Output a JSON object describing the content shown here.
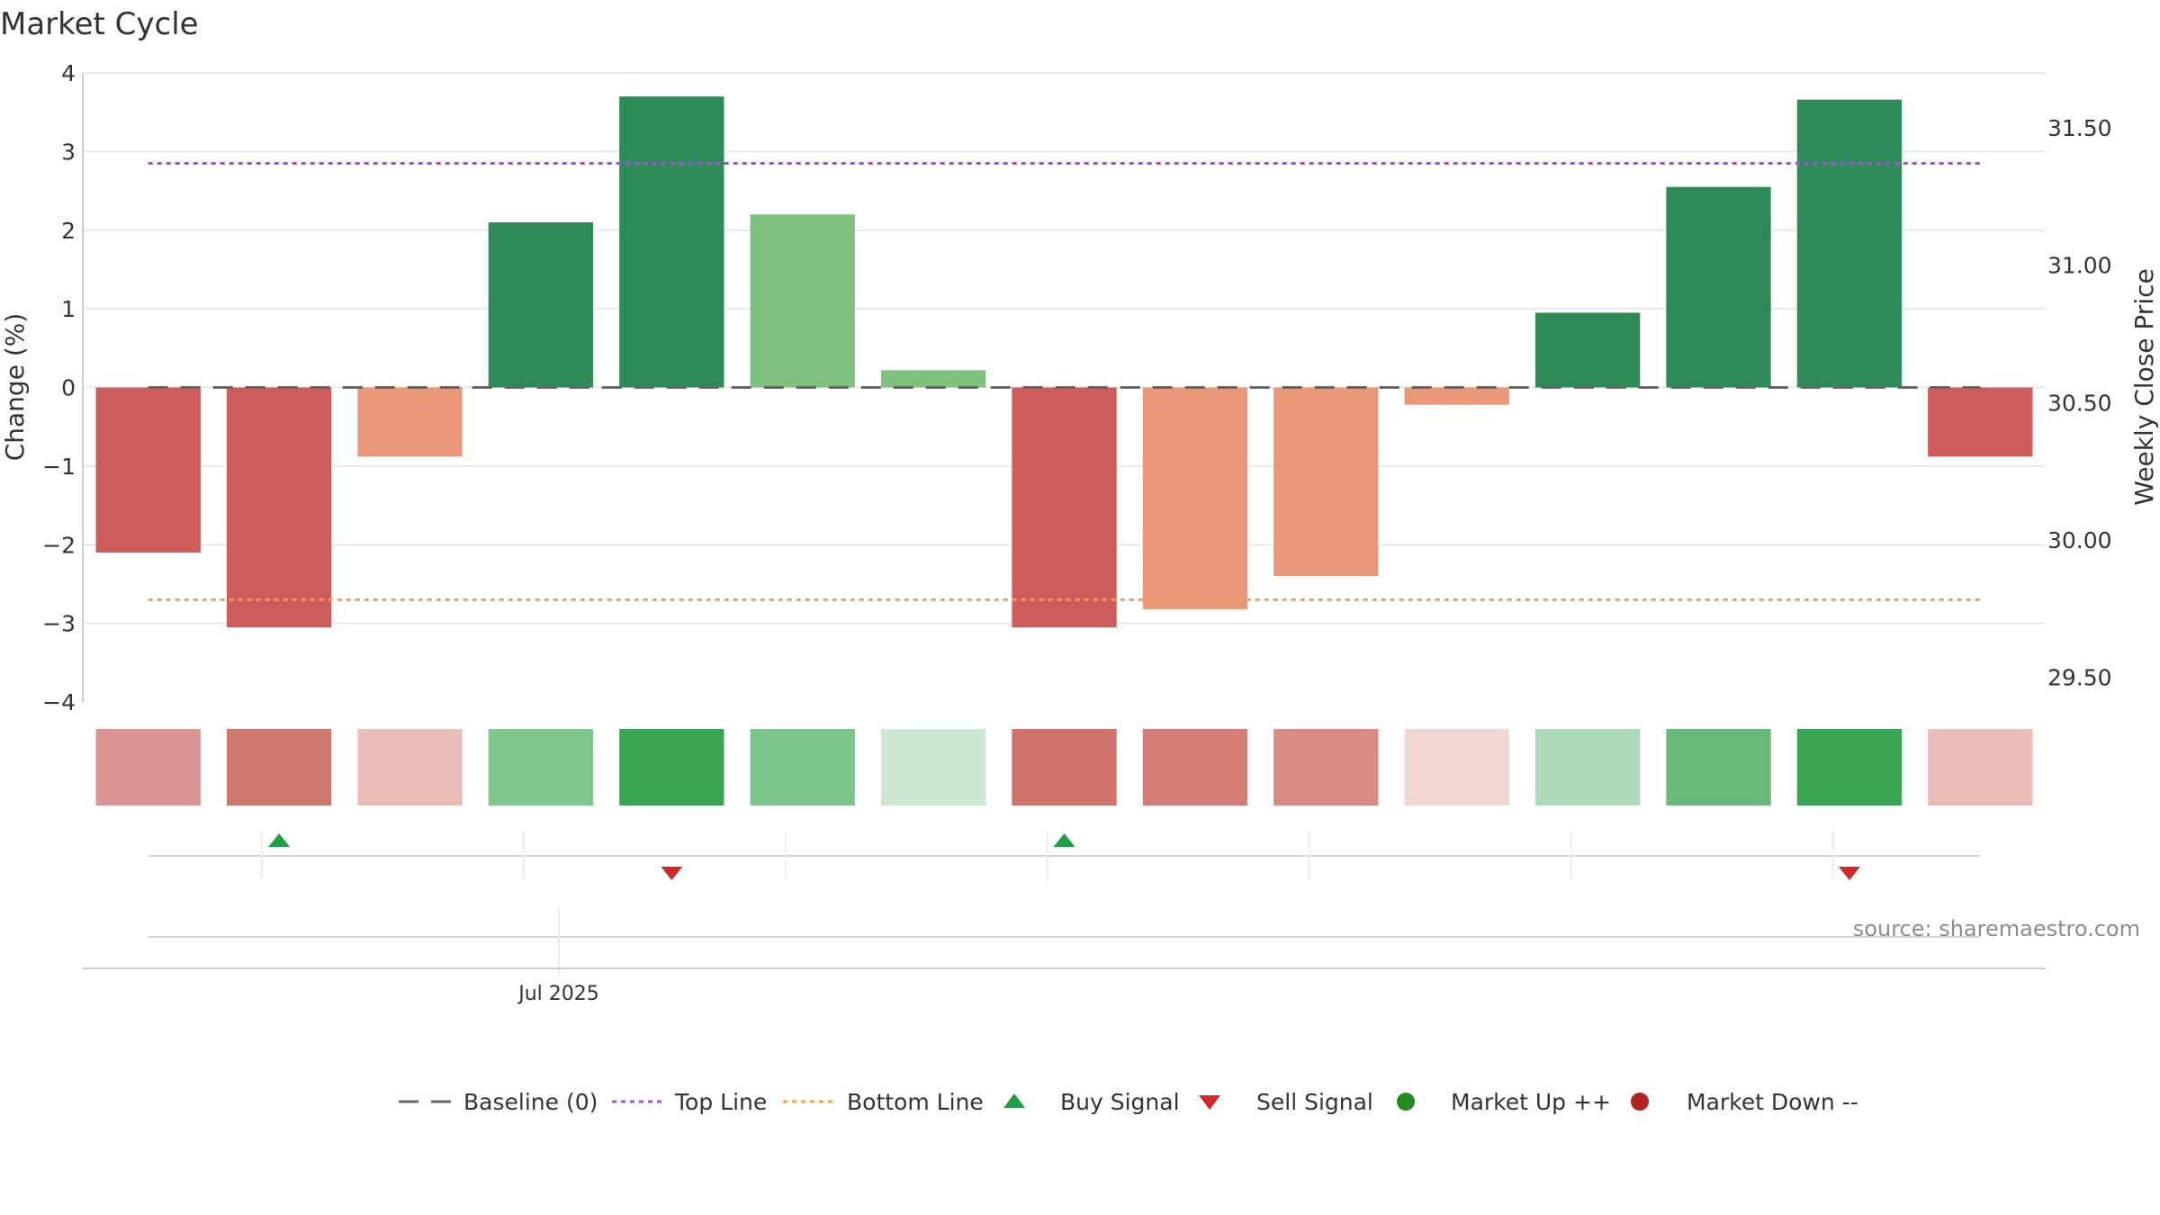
{
  "chart_data": {
    "type": "bar",
    "title": "Market Cycle",
    "ylabel": "Change (%)",
    "y2label": "Weekly Close Price",
    "ylim": [
      -4,
      4
    ],
    "yticks": [
      4,
      3,
      2,
      1,
      0,
      -1,
      -2,
      -3,
      -4
    ],
    "y2lim": [
      29.41,
      31.7
    ],
    "y2ticks": [
      "31.50",
      "31.00",
      "30.50",
      "30.00",
      "29.50"
    ],
    "grid": true,
    "bars": [
      {
        "value": -2.1,
        "color": "#cd5c5a"
      },
      {
        "value": -3.05,
        "color": "#cd5c5a"
      },
      {
        "value": -0.88,
        "color": "#e99778"
      },
      {
        "value": 2.1,
        "color": "#2e8b57"
      },
      {
        "value": 3.7,
        "color": "#2e8b57"
      },
      {
        "value": 2.2,
        "color": "#7fc17f"
      },
      {
        "value": 0.22,
        "color": "#7fc17f"
      },
      {
        "value": -3.05,
        "color": "#cd5c5a"
      },
      {
        "value": -2.82,
        "color": "#e99778"
      },
      {
        "value": -2.4,
        "color": "#e99778"
      },
      {
        "value": -0.22,
        "color": "#e99778"
      },
      {
        "value": 0.95,
        "color": "#2e8b57"
      },
      {
        "value": 2.55,
        "color": "#2e8b57"
      },
      {
        "value": 3.66,
        "color": "#2e8b57"
      },
      {
        "value": -0.88,
        "color": "#cd5c5a"
      }
    ],
    "baseline": {
      "value": 0,
      "color": "#666666"
    },
    "top_line": {
      "value": 2.85,
      "color": "#9b59d0"
    },
    "bottom_line": {
      "value": -2.7,
      "color": "#f0a050"
    },
    "heat_strip": [
      "#da9592",
      "#cf766f",
      "#ebbdb9",
      "#80c68f",
      "#39a654",
      "#7bc58a",
      "#cce8d3",
      "#cf726c",
      "#d47c75",
      "#d98a85",
      "#f2d6d4",
      "#acd9b7",
      "#69b97a",
      "#39a654",
      "#ebbdb9"
    ],
    "signals": [
      {
        "bar": 1,
        "type": "buy"
      },
      {
        "bar": 4,
        "type": "sell"
      },
      {
        "bar": 7,
        "type": "buy"
      },
      {
        "bar": 13,
        "type": "sell"
      }
    ],
    "signal_colors": {
      "buy": "#1f9e4a",
      "sell": "#d62728"
    },
    "x_tick": "Jul 2025",
    "source": "source: sharemaestro.com",
    "legend": [
      {
        "label": "Baseline (0)",
        "marker": "dash-gray"
      },
      {
        "label": "Top Line",
        "marker": "dotted-purple"
      },
      {
        "label": "Bottom Line",
        "marker": "dotted-orange"
      },
      {
        "label": "Buy Signal",
        "marker": "triangle-up-green"
      },
      {
        "label": "Sell Signal",
        "marker": "triangle-down-red"
      },
      {
        "label": "Market Up ++",
        "marker": "circle-green"
      },
      {
        "label": "Market Down --",
        "marker": "circle-red"
      }
    ],
    "legend_colors": {
      "green": "#228b22",
      "red": "#b22222"
    }
  }
}
